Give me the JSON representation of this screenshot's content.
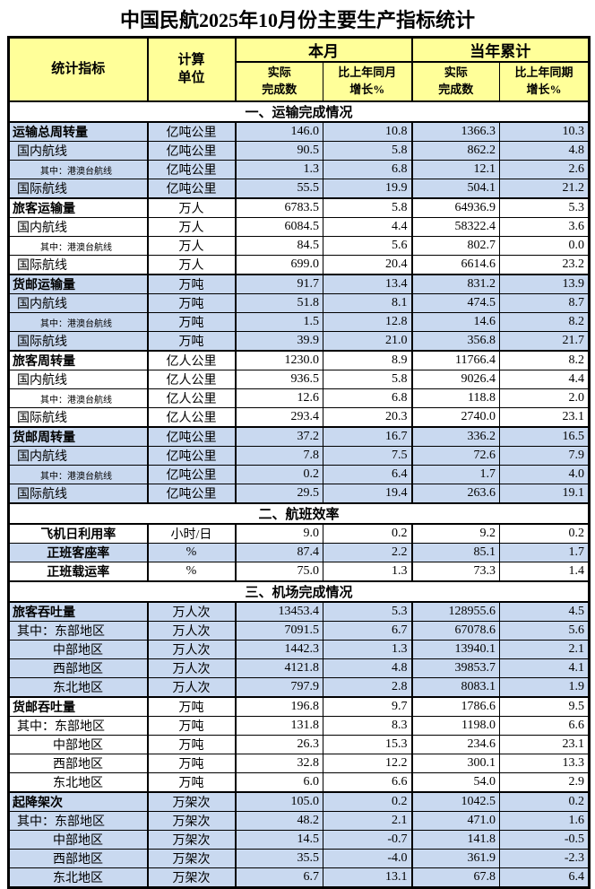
{
  "title": "中国民航2025年10月份主要生产指标统计",
  "colors": {
    "header_bg": "#FFFF99",
    "row_shade_blue": "#C9D9F0",
    "border": "#000000"
  },
  "header": {
    "indicator": "统计指标",
    "unit": "计算\n单位",
    "month_group": "本月",
    "ytd_group": "当年累计",
    "month_actual": "实际\n完成数",
    "month_growth": "比上年同月\n增长%",
    "ytd_actual": "实际\n完成数",
    "ytd_growth": "比上年同期\n增长%"
  },
  "sections": [
    {
      "heading": "一、运输完成情况",
      "rows": [
        {
          "label": "运输总周转量",
          "style": "group",
          "shade": true,
          "unit": "亿吨公里",
          "values": [
            "146.0",
            "10.8",
            "1366.3",
            "10.3"
          ]
        },
        {
          "label": "国内航线",
          "style": "sub",
          "shade": true,
          "unit": "亿吨公里",
          "values": [
            "90.5",
            "5.8",
            "862.2",
            "4.8"
          ]
        },
        {
          "label": "其中：港澳台航线",
          "style": "subsub",
          "shade": true,
          "unit": "亿吨公里",
          "values": [
            "1.3",
            "6.8",
            "12.1",
            "2.6"
          ]
        },
        {
          "label": "国际航线",
          "style": "sub",
          "shade": true,
          "unit": "亿吨公里",
          "values": [
            "55.5",
            "19.9",
            "504.1",
            "21.2"
          ]
        },
        {
          "label": "旅客运输量",
          "style": "group",
          "shade": false,
          "unit": "万人",
          "values": [
            "6783.5",
            "5.8",
            "64936.9",
            "5.3"
          ]
        },
        {
          "label": "国内航线",
          "style": "sub",
          "shade": false,
          "unit": "万人",
          "values": [
            "6084.5",
            "4.4",
            "58322.4",
            "3.6"
          ]
        },
        {
          "label": "其中：港澳台航线",
          "style": "subsub",
          "shade": false,
          "unit": "万人",
          "values": [
            "84.5",
            "5.6",
            "802.7",
            "0.0"
          ]
        },
        {
          "label": "国际航线",
          "style": "sub",
          "shade": false,
          "unit": "万人",
          "values": [
            "699.0",
            "20.4",
            "6614.6",
            "23.2"
          ]
        },
        {
          "label": "货邮运输量",
          "style": "group",
          "shade": true,
          "unit": "万吨",
          "values": [
            "91.7",
            "13.4",
            "831.2",
            "13.9"
          ]
        },
        {
          "label": "国内航线",
          "style": "sub",
          "shade": true,
          "unit": "万吨",
          "values": [
            "51.8",
            "8.1",
            "474.5",
            "8.7"
          ]
        },
        {
          "label": "其中：港澳台航线",
          "style": "subsub",
          "shade": true,
          "unit": "万吨",
          "values": [
            "1.5",
            "12.8",
            "14.6",
            "8.2"
          ]
        },
        {
          "label": "国际航线",
          "style": "sub",
          "shade": true,
          "unit": "万吨",
          "values": [
            "39.9",
            "21.0",
            "356.8",
            "21.7"
          ]
        },
        {
          "label": "旅客周转量",
          "style": "group",
          "shade": false,
          "unit": "亿人公里",
          "values": [
            "1230.0",
            "8.9",
            "11766.4",
            "8.2"
          ]
        },
        {
          "label": "国内航线",
          "style": "sub",
          "shade": false,
          "unit": "亿人公里",
          "values": [
            "936.5",
            "5.8",
            "9026.4",
            "4.4"
          ]
        },
        {
          "label": "其中：港澳台航线",
          "style": "subsub",
          "shade": false,
          "unit": "亿人公里",
          "values": [
            "12.6",
            "6.8",
            "118.8",
            "2.0"
          ]
        },
        {
          "label": "国际航线",
          "style": "sub",
          "shade": false,
          "unit": "亿人公里",
          "values": [
            "293.4",
            "20.3",
            "2740.0",
            "23.1"
          ]
        },
        {
          "label": "货邮周转量",
          "style": "group",
          "shade": true,
          "unit": "亿吨公里",
          "values": [
            "37.2",
            "16.7",
            "336.2",
            "16.5"
          ]
        },
        {
          "label": "国内航线",
          "style": "sub",
          "shade": true,
          "unit": "亿吨公里",
          "values": [
            "7.8",
            "7.5",
            "72.6",
            "7.9"
          ]
        },
        {
          "label": "其中：港澳台航线",
          "style": "subsub",
          "shade": true,
          "unit": "亿吨公里",
          "values": [
            "0.2",
            "6.4",
            "1.7",
            "4.0"
          ]
        },
        {
          "label": "国际航线",
          "style": "sub",
          "shade": true,
          "unit": "亿吨公里",
          "values": [
            "29.5",
            "19.4",
            "263.6",
            "19.1"
          ]
        }
      ]
    },
    {
      "heading": "二、航班效率",
      "rows": [
        {
          "label": "飞机日利用率",
          "style": "center",
          "shade": false,
          "unit": "小时/日",
          "values": [
            "9.0",
            "0.2",
            "9.2",
            "0.2"
          ]
        },
        {
          "label": "正班客座率",
          "style": "center",
          "shade": true,
          "unit": "%",
          "values": [
            "87.4",
            "2.2",
            "85.1",
            "1.7"
          ]
        },
        {
          "label": "正班载运率",
          "style": "center",
          "shade": false,
          "unit": "%",
          "values": [
            "75.0",
            "1.3",
            "73.3",
            "1.4"
          ]
        }
      ]
    },
    {
      "heading": "三、机场完成情况",
      "rows": [
        {
          "label": "旅客吞吐量",
          "style": "group",
          "shade": true,
          "unit": "万人次",
          "values": [
            "13453.4",
            "5.3",
            "128955.6",
            "4.5"
          ]
        },
        {
          "label": "其中：东部地区",
          "style": "sub2",
          "shade": true,
          "unit": "万人次",
          "values": [
            "7091.5",
            "6.7",
            "67078.6",
            "5.6"
          ]
        },
        {
          "label": "中部地区",
          "style": "region",
          "shade": true,
          "unit": "万人次",
          "values": [
            "1442.3",
            "1.3",
            "13940.1",
            "2.1"
          ]
        },
        {
          "label": "西部地区",
          "style": "region",
          "shade": true,
          "unit": "万人次",
          "values": [
            "4121.8",
            "4.8",
            "39853.7",
            "4.1"
          ]
        },
        {
          "label": "东北地区",
          "style": "region",
          "shade": true,
          "unit": "万人次",
          "values": [
            "797.9",
            "2.8",
            "8083.1",
            "1.9"
          ]
        },
        {
          "label": "货邮吞吐量",
          "style": "group",
          "shade": false,
          "unit": "万吨",
          "values": [
            "196.8",
            "9.7",
            "1786.6",
            "9.5"
          ]
        },
        {
          "label": "其中：东部地区",
          "style": "sub2",
          "shade": false,
          "unit": "万吨",
          "values": [
            "131.8",
            "8.3",
            "1198.0",
            "6.6"
          ]
        },
        {
          "label": "中部地区",
          "style": "region",
          "shade": false,
          "unit": "万吨",
          "values": [
            "26.3",
            "15.3",
            "234.6",
            "23.1"
          ]
        },
        {
          "label": "西部地区",
          "style": "region",
          "shade": false,
          "unit": "万吨",
          "values": [
            "32.8",
            "12.2",
            "300.1",
            "13.3"
          ]
        },
        {
          "label": "东北地区",
          "style": "region",
          "shade": false,
          "unit": "万吨",
          "values": [
            "6.0",
            "6.6",
            "54.0",
            "2.9"
          ]
        },
        {
          "label": "起降架次",
          "style": "group",
          "shade": true,
          "unit": "万架次",
          "values": [
            "105.0",
            "0.2",
            "1042.5",
            "0.2"
          ]
        },
        {
          "label": "其中：东部地区",
          "style": "sub2",
          "shade": true,
          "unit": "万架次",
          "values": [
            "48.2",
            "2.1",
            "471.0",
            "1.6"
          ]
        },
        {
          "label": "中部地区",
          "style": "region",
          "shade": true,
          "unit": "万架次",
          "values": [
            "14.5",
            "-0.7",
            "141.8",
            "-0.5"
          ]
        },
        {
          "label": "西部地区",
          "style": "region",
          "shade": true,
          "unit": "万架次",
          "values": [
            "35.5",
            "-4.0",
            "361.9",
            "-2.3"
          ]
        },
        {
          "label": "东北地区",
          "style": "region",
          "shade": true,
          "unit": "万架次",
          "values": [
            "6.7",
            "13.1",
            "67.8",
            "6.4"
          ]
        }
      ]
    }
  ]
}
